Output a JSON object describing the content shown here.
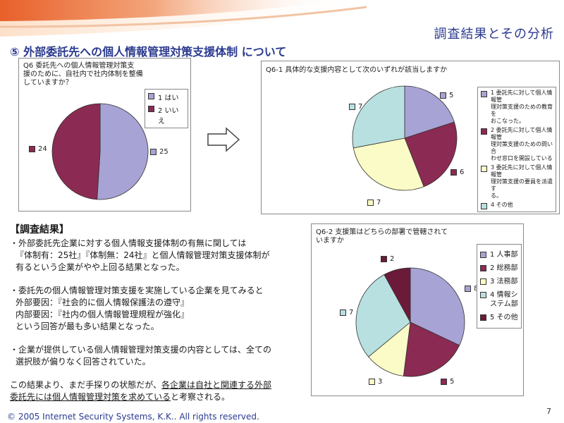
{
  "header": {
    "title": "調査結果とその分析"
  },
  "section": {
    "title": "⑤ 外部委託先への個人情報管理対策支援体制 について"
  },
  "colors": {
    "c1": "#a7a3d4",
    "c2": "#8b2a52",
    "c3": "#fbfbc7",
    "c4": "#b8e0e0",
    "c5": "#6b1a3a",
    "accent": "#2b3a8f"
  },
  "q6": {
    "title_lines": [
      "Q6 委託先への個人情報管理対策支",
      "援のために、自社内で社内体制を整備",
      "していますか？"
    ],
    "legend": [
      "1 はい",
      "2 いいえ"
    ],
    "labels": [
      "25",
      "24"
    ]
  },
  "q61": {
    "title": "Q6-1 具体的な支援内容として次のいずれが該当しますか",
    "legend": [
      [
        "1 委託先に対して個人情報管",
        "理対策支援のための教育を",
        "おこなった。"
      ],
      [
        "2 委託先に対して個人情報管",
        "理対策支援のための問い合",
        "わせ窓口を開設している"
      ],
      [
        "3 委託先に対して個人情報管",
        "理対策支援の要員を派遣す",
        "る。"
      ],
      [
        "4 その他"
      ]
    ],
    "labels": [
      "5",
      "6",
      "7",
      "7"
    ]
  },
  "q62": {
    "title_lines": [
      "Q6-2 支援策はどちらの部署で管轄されて",
      "いますか"
    ],
    "legend": [
      [
        "1 人事部"
      ],
      [
        "2 総務部"
      ],
      [
        "3 法務部"
      ],
      [
        "4 情報シ",
        "ステム部"
      ],
      [
        "5 その他"
      ]
    ],
    "labels": [
      "8",
      "5",
      "3",
      "7",
      "2"
    ]
  },
  "chart_data": [
    {
      "type": "pie",
      "title": "Q6 委託先への個人情報管理対策支援のために、自社内で社内体制を整備していますか？",
      "categories": [
        "1 はい",
        "2 いいえ"
      ],
      "values": [
        25,
        24
      ]
    },
    {
      "type": "pie",
      "title": "Q6-1 具体的な支援内容として次のいずれが該当しますか",
      "categories": [
        "1",
        "2",
        "3",
        "4 その他"
      ],
      "values": [
        5,
        6,
        7,
        7
      ]
    },
    {
      "type": "pie",
      "title": "Q6-2 支援策はどちらの部署で管轄されていますか",
      "categories": [
        "1 人事部",
        "2 総務部",
        "3 法務部",
        "4 情報システム部",
        "5 その他"
      ],
      "values": [
        8,
        5,
        3,
        7,
        2
      ]
    }
  ],
  "results": {
    "heading": "【調査結果】",
    "p1": [
      "・外部委託先企業に対する個人情報支援体制の有無に関しては",
      "『体制有：25社』『体制無：24社』と個人情報管理対策支援体制が",
      "有るという企業がやや上回る結果となった。"
    ],
    "p2": [
      "・委託先の個人情報管理対策支援を実施している企業を見てみると",
      "外部要因：『社会的に個人情報保護法の遵守』",
      "内部要因：『社内の個人情報管理規程が強化』",
      "という回答が最も多い結果となった。"
    ],
    "p3": [
      "・企業が提供している個人情報管理対策支援の内容としては、全ての",
      "選択肢が偏りなく回答されていた。"
    ],
    "p4a": "この結果より、まだ手探りの状態だが、",
    "p4b": "各企業は自社と関連する外部",
    "p4c": "委託先には個人情報管理対策を求めている",
    "p4d": "と考察される。"
  },
  "footer": {
    "copyright": "© 2005 Internet Security Systems, K.K.. All rights reserved.",
    "page": "7"
  }
}
